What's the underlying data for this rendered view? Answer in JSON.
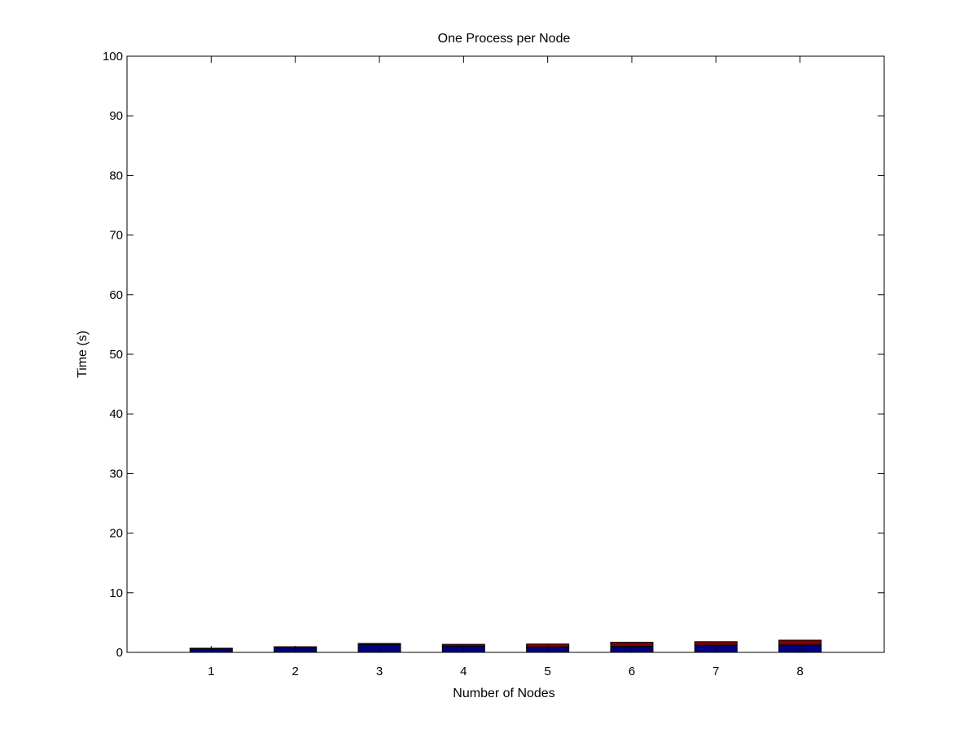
{
  "chart_data": {
    "type": "bar",
    "stacked": true,
    "title": "One Process per Node",
    "xlabel": "Number of Nodes",
    "ylabel": "Time (s)",
    "categories": [
      "1",
      "2",
      "3",
      "4",
      "5",
      "6",
      "7",
      "8"
    ],
    "series": [
      {
        "color": "#000080",
        "values": [
          0.6,
          0.75,
          1.3,
          1.05,
          0.9,
          1.0,
          1.2,
          1.25
        ]
      },
      {
        "color": "#800000",
        "values": [
          0.1,
          0.2,
          0.2,
          0.3,
          0.5,
          0.7,
          0.6,
          0.8
        ]
      }
    ],
    "ylim": [
      0,
      100
    ],
    "yticks": [
      0,
      10,
      20,
      30,
      40,
      50,
      60,
      70,
      80,
      90,
      100
    ],
    "xlim": [
      0,
      9
    ],
    "grid": false,
    "legend": "none",
    "bar_edge_color": "#000000"
  }
}
